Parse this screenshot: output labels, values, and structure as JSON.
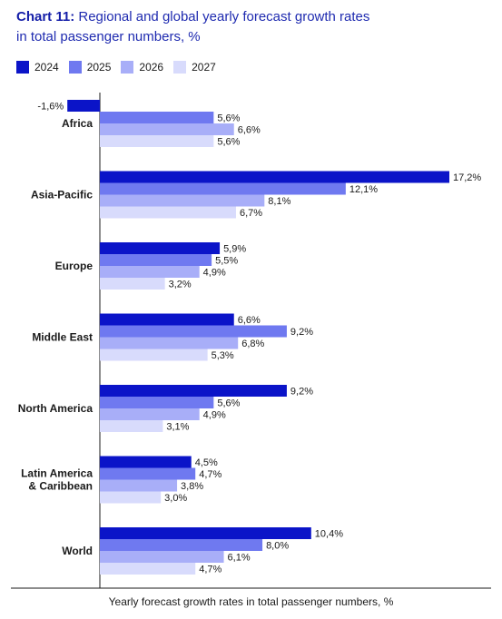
{
  "header": {
    "chart_number": "Chart 11:",
    "title_line1": "Regional and global yearly forecast growth rates",
    "title_line2": "in total passenger numbers, %"
  },
  "chart_data": {
    "type": "bar",
    "orientation": "horizontal",
    "categories": [
      "Africa",
      "Asia-Pacific",
      "Europe",
      "Middle East",
      "North America",
      "Latin America & Caribbean",
      "World"
    ],
    "category_lines": [
      [
        "Africa"
      ],
      [
        "Asia-Pacific"
      ],
      [
        "Europe"
      ],
      [
        "Middle East"
      ],
      [
        "North America"
      ],
      [
        "Latin America",
        "& Caribbean"
      ],
      [
        "World"
      ]
    ],
    "series": [
      {
        "name": "2024",
        "color": "#0b14c8",
        "values": [
          -1.6,
          17.2,
          5.9,
          6.6,
          9.2,
          4.5,
          10.4
        ],
        "labels": [
          "-1,6%",
          "17,2%",
          "5,9%",
          "6,6%",
          "9,2%",
          "4,5%",
          "10,4%"
        ]
      },
      {
        "name": "2025",
        "color": "#6f79f0",
        "values": [
          5.6,
          12.1,
          5.5,
          9.2,
          5.6,
          4.7,
          8.0
        ],
        "labels": [
          "5,6%",
          "12,1%",
          "5,5%",
          "9,2%",
          "5,6%",
          "4,7%",
          "8,0%"
        ]
      },
      {
        "name": "2026",
        "color": "#a8aef8",
        "values": [
          6.6,
          8.1,
          4.9,
          6.8,
          4.9,
          3.8,
          6.1
        ],
        "labels": [
          "6,6%",
          "8,1%",
          "4,9%",
          "6,8%",
          "4,9%",
          "3,8%",
          "6,1%"
        ]
      },
      {
        "name": "2027",
        "color": "#d8dbfc",
        "values": [
          5.6,
          6.7,
          3.2,
          5.3,
          3.1,
          3.0,
          4.7
        ],
        "labels": [
          "5,6%",
          "6,7%",
          "3,2%",
          "5,3%",
          "3,1%",
          "3,0%",
          "4,7%"
        ]
      }
    ],
    "xlabel": "Yearly forecast growth rates in total passenger numbers, %",
    "ylabel": "",
    "legend": "top-left",
    "grid": false
  }
}
